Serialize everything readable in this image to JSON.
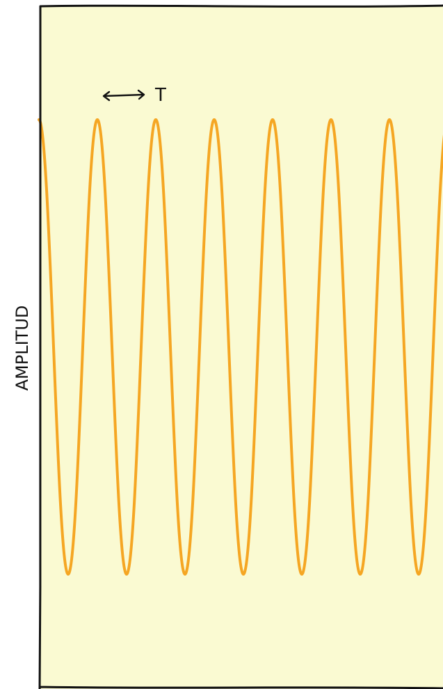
{
  "chart_data": {
    "type": "line",
    "title": "",
    "xlabel": "",
    "ylabel": "AMPLITUD",
    "grid": false,
    "series": [
      {
        "color": "#f5a623",
        "x": [
          0,
          1,
          2,
          3,
          4,
          5,
          6,
          7,
          8,
          9,
          10,
          11,
          12,
          13,
          14,
          15
        ],
        "y": [
          1,
          -1,
          1,
          -1,
          1,
          -1,
          1,
          -1,
          1,
          -1,
          1,
          -1,
          1,
          -1,
          1,
          -1
        ]
      }
    ],
    "annotations": [
      {
        "text": "T",
        "arrow": "↔",
        "x_start": 2,
        "x_end": 3.8
      }
    ],
    "colors": {
      "background": "#fafad2",
      "frame": "#111111",
      "line": "#f5a623"
    }
  }
}
